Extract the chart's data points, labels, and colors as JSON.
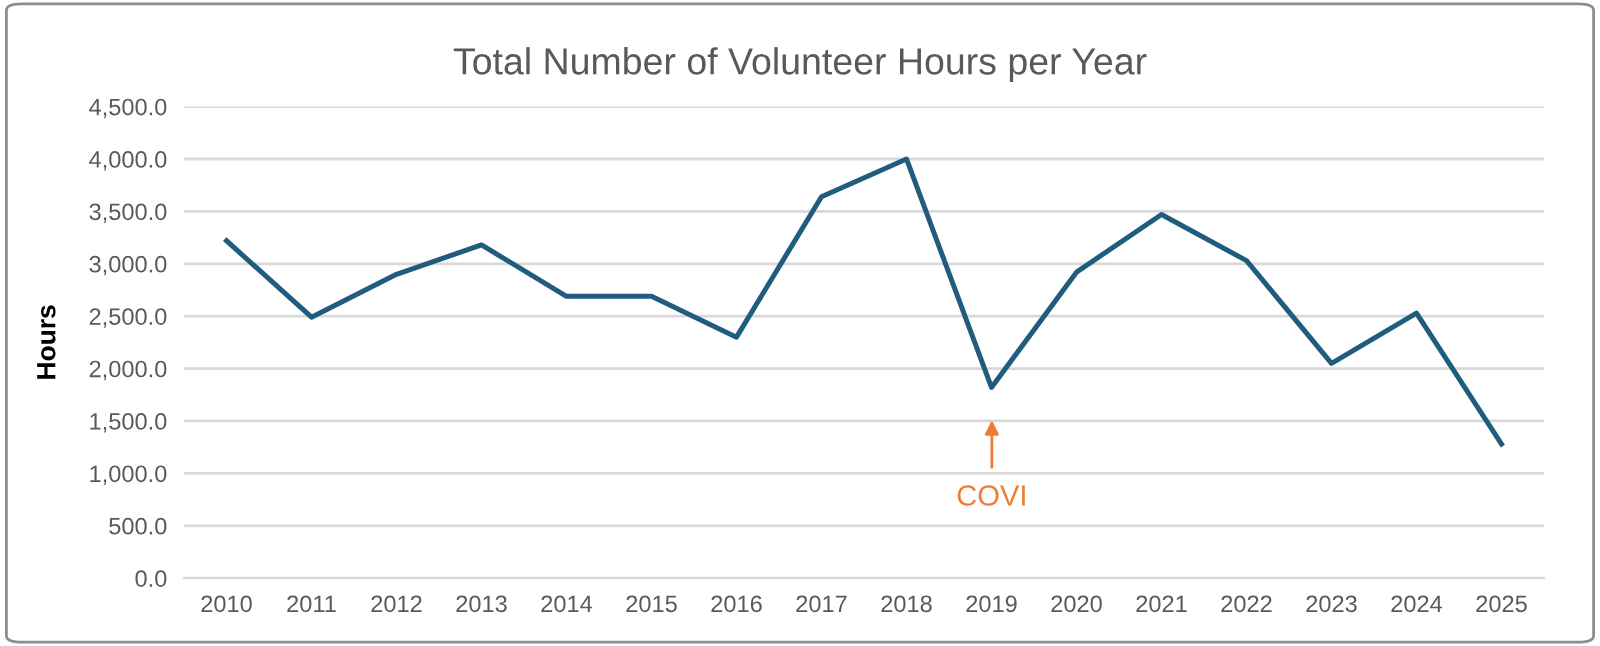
{
  "chart_data": {
    "type": "line",
    "title": "Total Number of Volunteer Hours per Year",
    "ylabel": "Hours",
    "categories": [
      "2010",
      "2011",
      "2012",
      "2013",
      "2014",
      "2015",
      "2016",
      "2017",
      "2018",
      "2019",
      "2020",
      "2021",
      "2022",
      "2023",
      "2024",
      "2025"
    ],
    "series": [
      {
        "color": "#1f5c7d",
        "values": [
          3220,
          2490,
          2900,
          3180,
          2690,
          2690,
          2300,
          3640,
          4000,
          1820,
          2920,
          3470,
          3030,
          2050,
          2530,
          1280
        ]
      }
    ],
    "ylim": [
      0,
      4500
    ],
    "yticks": [
      {
        "value": 0,
        "label": "0.0"
      },
      {
        "value": 500,
        "label": "500.0"
      },
      {
        "value": 1000,
        "label": "1,000.0"
      },
      {
        "value": 1500,
        "label": "1,500.0"
      },
      {
        "value": 2000,
        "label": "2,000.0"
      },
      {
        "value": 2500,
        "label": "2,500.0"
      },
      {
        "value": 3000,
        "label": "3,000.0"
      },
      {
        "value": 3500,
        "label": "3,500.0"
      },
      {
        "value": 4000,
        "label": "4,000.0"
      },
      {
        "value": 4500,
        "label": "4,500.0"
      }
    ],
    "grid": "y",
    "legend": false,
    "marker": "none",
    "line_style": "solid",
    "annotations": [
      "COVI"
    ]
  }
}
